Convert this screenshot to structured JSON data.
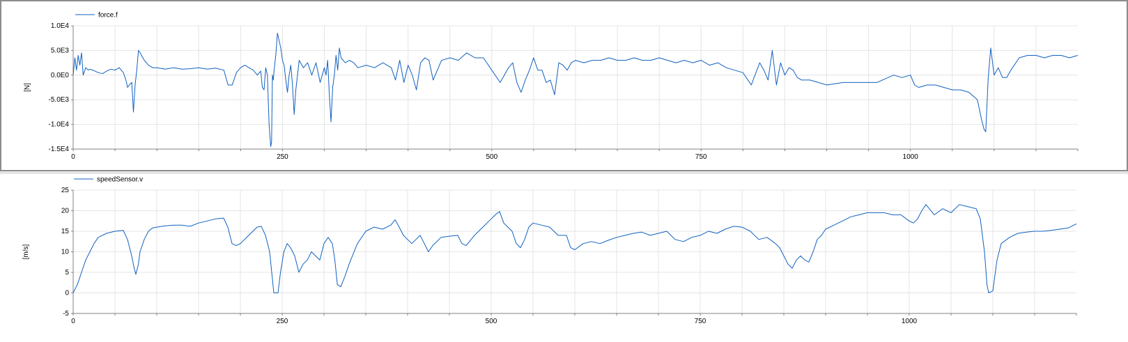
{
  "colors": {
    "series": "#1060c0",
    "grid": "#e4e4e4",
    "axis": "#808080"
  },
  "chart_data": [
    {
      "type": "line",
      "ylabel": "[N]",
      "xlim": [
        0,
        1200
      ],
      "ylim": [
        -15000,
        10000
      ],
      "xticks": [
        0,
        250,
        500,
        750,
        1000
      ],
      "xtick_labels": [
        "0",
        "250",
        "500",
        "750",
        "1000"
      ],
      "yticks": [
        -15000,
        -10000,
        -5000,
        0,
        5000,
        10000
      ],
      "ytick_labels": [
        "-1.5E4",
        "-1.0E4",
        "-5.0E3",
        "0.0E0",
        "5.0E3",
        "1.0E4"
      ],
      "grid": true,
      "legend": "top-left",
      "series": [
        {
          "name": "force.f",
          "x": [
            0,
            2,
            4,
            6,
            8,
            10,
            12,
            15,
            18,
            20,
            25,
            30,
            35,
            40,
            45,
            50,
            55,
            60,
            63,
            65,
            67,
            70,
            72,
            74,
            76,
            78,
            80,
            85,
            90,
            95,
            100,
            110,
            120,
            130,
            140,
            150,
            160,
            170,
            180,
            185,
            190,
            195,
            200,
            205,
            210,
            215,
            220,
            224,
            226,
            228,
            230,
            232,
            234,
            236,
            237,
            238,
            239,
            240,
            242,
            244,
            246,
            248,
            250,
            252,
            254,
            256,
            258,
            260,
            262,
            264,
            266,
            268,
            270,
            275,
            280,
            285,
            290,
            295,
            300,
            302,
            304,
            306,
            308,
            310,
            312,
            314,
            316,
            318,
            320,
            325,
            330,
            335,
            340,
            350,
            360,
            370,
            380,
            385,
            390,
            395,
            400,
            405,
            410,
            415,
            420,
            425,
            430,
            440,
            450,
            460,
            470,
            480,
            490,
            500,
            510,
            520,
            525,
            530,
            535,
            540,
            545,
            550,
            555,
            560,
            565,
            570,
            575,
            580,
            585,
            590,
            595,
            600,
            610,
            620,
            630,
            640,
            650,
            660,
            670,
            680,
            690,
            700,
            710,
            720,
            730,
            740,
            750,
            760,
            770,
            780,
            790,
            800,
            810,
            820,
            825,
            830,
            835,
            840,
            845,
            850,
            855,
            860,
            865,
            870,
            880,
            890,
            900,
            920,
            940,
            960,
            980,
            990,
            1000,
            1005,
            1010,
            1020,
            1030,
            1040,
            1050,
            1060,
            1070,
            1080,
            1085,
            1088,
            1090,
            1093,
            1096,
            1100,
            1105,
            1110,
            1115,
            1120,
            1130,
            1140,
            1150,
            1160,
            1170,
            1180,
            1190,
            1200
          ],
          "y": [
            0,
            3500,
            1000,
            4000,
            2000,
            4500,
            0,
            1500,
            1000,
            1200,
            900,
            500,
            300,
            800,
            1200,
            1000,
            1500,
            500,
            -1000,
            -2500,
            -2000,
            -1500,
            -7500,
            -2000,
            1000,
            5000,
            4500,
            3000,
            2000,
            1500,
            1500,
            1200,
            1500,
            1200,
            1300,
            1500,
            1200,
            1400,
            1000,
            -2000,
            -2000,
            500,
            1500,
            2000,
            1500,
            1000,
            0,
            800,
            -2500,
            -3000,
            1500,
            0,
            -10000,
            -14500,
            -13500,
            0,
            -1000,
            1000,
            4000,
            8500,
            7000,
            5500,
            3000,
            2000,
            -1000,
            -3500,
            0,
            2000,
            -2000,
            -8000,
            -3000,
            0,
            3000,
            1500,
            2500,
            0,
            2500,
            -1500,
            1500,
            0,
            3000,
            -4000,
            -9500,
            -2500,
            0,
            4000,
            1000,
            5500,
            3500,
            2500,
            3000,
            2500,
            1500,
            2000,
            1500,
            2500,
            1500,
            -1000,
            3000,
            -1500,
            2000,
            0,
            -3000,
            2500,
            3500,
            3000,
            -1000,
            3000,
            3500,
            3000,
            4500,
            3500,
            3500,
            1000,
            -1500,
            1500,
            2500,
            -1500,
            -3500,
            -1000,
            1000,
            3500,
            1000,
            1000,
            -1500,
            -1000,
            -4000,
            2500,
            2000,
            1000,
            2500,
            3000,
            2500,
            3000,
            3000,
            3500,
            3000,
            3000,
            3500,
            3000,
            3000,
            3500,
            3000,
            2500,
            3000,
            2500,
            3000,
            2000,
            2500,
            1500,
            1000,
            500,
            -2000,
            2500,
            1000,
            -1000,
            5000,
            -2000,
            2500,
            0,
            1500,
            1000,
            -500,
            -1000,
            -1000,
            -1500,
            -2000,
            -1500,
            -1500,
            -1500,
            0,
            -500,
            0,
            -2000,
            -2500,
            -2000,
            -2000,
            -2500,
            -3000,
            -3000,
            -3500,
            -5000,
            -9000,
            -11000,
            -11500,
            -500,
            5500,
            0,
            1500,
            -500,
            -500,
            1000,
            3500,
            4000,
            4000,
            3500,
            4000,
            4000,
            3500,
            4000
          ]
        }
      ]
    },
    {
      "type": "line",
      "ylabel": "[m/s]",
      "xlim": [
        0,
        1200
      ],
      "ylim": [
        -5,
        25
      ],
      "xticks": [
        0,
        250,
        500,
        750,
        1000
      ],
      "xtick_labels": [
        "0",
        "250",
        "500",
        "750",
        "1000"
      ],
      "yticks": [
        -5,
        0,
        5,
        10,
        15,
        20,
        25
      ],
      "ytick_labels": [
        "-5",
        "0",
        "5",
        "10",
        "15",
        "20",
        "25"
      ],
      "grid": true,
      "legend": "top-left",
      "series": [
        {
          "name": "speedSensor.v",
          "x": [
            0,
            5,
            10,
            15,
            20,
            25,
            30,
            40,
            50,
            60,
            65,
            70,
            73,
            75,
            78,
            80,
            85,
            90,
            95,
            100,
            110,
            120,
            130,
            140,
            150,
            160,
            170,
            180,
            185,
            190,
            195,
            200,
            210,
            220,
            225,
            230,
            235,
            238,
            240,
            245,
            248,
            252,
            256,
            260,
            265,
            270,
            275,
            280,
            285,
            290,
            295,
            300,
            305,
            310,
            313,
            316,
            320,
            325,
            330,
            340,
            350,
            360,
            370,
            380,
            385,
            390,
            395,
            400,
            405,
            410,
            415,
            420,
            425,
            430,
            440,
            450,
            460,
            465,
            470,
            480,
            490,
            500,
            505,
            510,
            515,
            520,
            525,
            530,
            535,
            540,
            545,
            550,
            560,
            570,
            580,
            590,
            595,
            600,
            610,
            620,
            630,
            640,
            650,
            660,
            670,
            680,
            690,
            700,
            710,
            720,
            730,
            740,
            750,
            760,
            770,
            780,
            790,
            800,
            810,
            820,
            830,
            840,
            845,
            850,
            855,
            860,
            865,
            870,
            875,
            880,
            885,
            890,
            895,
            900,
            910,
            920,
            930,
            940,
            950,
            960,
            970,
            980,
            990,
            1000,
            1005,
            1010,
            1015,
            1020,
            1030,
            1040,
            1050,
            1060,
            1070,
            1080,
            1085,
            1090,
            1093,
            1095,
            1100,
            1105,
            1110,
            1120,
            1130,
            1140,
            1150,
            1160,
            1170,
            1180,
            1190,
            1200
          ],
          "y": [
            0,
            2,
            5,
            8,
            10,
            12,
            13.5,
            14.5,
            15,
            15.2,
            13,
            9,
            6,
            4.5,
            7,
            10,
            13,
            15,
            15.8,
            16,
            16.3,
            16.5,
            16.5,
            16.2,
            17,
            17.5,
            18,
            18.2,
            16,
            12,
            11.5,
            12,
            14,
            16,
            16.2,
            14,
            10,
            4,
            0,
            0,
            5,
            10,
            12,
            11,
            9,
            5,
            7,
            8,
            10,
            9,
            8,
            12,
            13.5,
            12,
            8,
            2,
            1.5,
            4,
            7,
            12,
            15,
            16,
            15.5,
            16.5,
            17.8,
            16,
            14,
            13,
            12,
            13,
            14,
            12,
            10,
            11.5,
            13.5,
            13.8,
            14,
            12,
            11.5,
            14,
            16,
            18,
            19,
            19.8,
            17,
            16,
            15,
            12,
            11,
            13,
            16,
            17,
            16.5,
            16,
            14,
            14,
            11,
            10.5,
            12,
            12.5,
            12,
            12.8,
            13.5,
            14,
            14.5,
            14.8,
            14,
            14.5,
            15,
            13,
            12.5,
            13.5,
            14,
            15,
            14.5,
            15.5,
            16.2,
            16,
            15,
            13,
            13.5,
            12,
            11,
            9,
            7,
            6,
            8,
            9,
            8,
            7.5,
            10,
            13,
            14,
            15.5,
            16.5,
            17.5,
            18.5,
            19,
            19.5,
            19.5,
            19.5,
            19,
            19,
            17.5,
            17,
            18,
            20,
            21.5,
            19,
            20.5,
            19.5,
            21.5,
            21,
            20.5,
            18,
            10,
            2,
            0,
            0.5,
            8,
            12,
            13.5,
            14.5,
            14.8,
            15,
            15,
            15.2,
            15.5,
            15.8,
            16.8
          ]
        }
      ]
    }
  ]
}
